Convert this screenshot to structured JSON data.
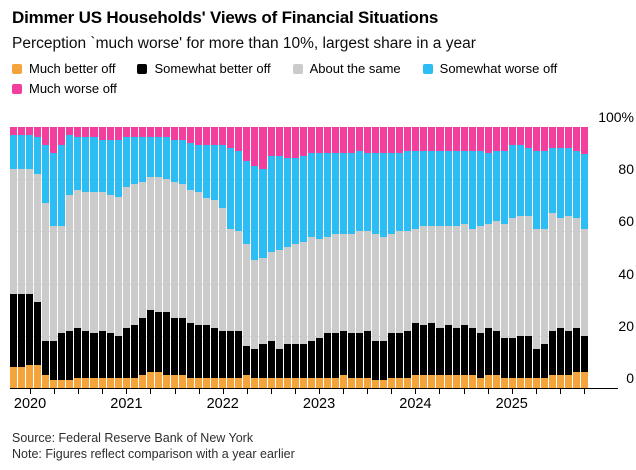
{
  "header": {
    "title": "Dimmer US Households' Views of Financial Situations",
    "subtitle": "Perception `much worse' for more than 10%, largest share in a year"
  },
  "legend": [
    {
      "label": "Much better off",
      "color": "#F5A33B"
    },
    {
      "label": "Somewhat better off",
      "color": "#000000"
    },
    {
      "label": "About the same",
      "color": "#CBCBCB"
    },
    {
      "label": "Somewhat worse off",
      "color": "#2DBDF5"
    },
    {
      "label": "Much worse off",
      "color": "#F23E9D"
    }
  ],
  "footer": {
    "source": "Source: Federal Reserve Bank of New York",
    "note": "Note: Figures reflect comparison with a year earlier"
  },
  "chart_data": {
    "type": "bar",
    "stacked": true,
    "unit": "percent",
    "title": "Household perception of financial situation vs a year ago",
    "grid": true,
    "legend_position": "top",
    "y_axis": {
      "side": "right",
      "range": [
        0,
        100
      ],
      "ticks": [
        {
          "label": "100%",
          "value": 100
        },
        {
          "label": "80",
          "value": 80
        },
        {
          "label": "60",
          "value": 60
        },
        {
          "label": "40",
          "value": 40
        },
        {
          "label": "20",
          "value": 20
        },
        {
          "label": "0",
          "value": 0
        }
      ]
    },
    "x_axis": {
      "year_labels": [
        "2020",
        "2021",
        "2022",
        "2023",
        "2024",
        "2025"
      ],
      "minor_tick_months": [
        "Jan",
        "Apr",
        "Jul",
        "Oct"
      ]
    },
    "categories": [
      "Nov 2019",
      "Dec 2019",
      "Jan 2020",
      "Feb 2020",
      "Mar 2020",
      "Apr 2020",
      "May 2020",
      "Jun 2020",
      "Jul 2020",
      "Aug 2020",
      "Sep 2020",
      "Oct 2020",
      "Nov 2020",
      "Dec 2020",
      "Jan 2021",
      "Feb 2021",
      "Mar 2021",
      "Apr 2021",
      "May 2021",
      "Jun 2021",
      "Jul 2021",
      "Aug 2021",
      "Sep 2021",
      "Oct 2021",
      "Nov 2021",
      "Dec 2021",
      "Jan 2022",
      "Feb 2022",
      "Mar 2022",
      "Apr 2022",
      "May 2022",
      "Jun 2022",
      "Jul 2022",
      "Aug 2022",
      "Sep 2022",
      "Oct 2022",
      "Nov 2022",
      "Dec 2022",
      "Jan 2023",
      "Feb 2023",
      "Mar 2023",
      "Apr 2023",
      "May 2023",
      "Jun 2023",
      "Jul 2023",
      "Aug 2023",
      "Sep 2023",
      "Oct 2023",
      "Nov 2023",
      "Dec 2023",
      "Jan 2024",
      "Feb 2024",
      "Mar 2024",
      "Apr 2024",
      "May 2024",
      "Jun 2024",
      "Jul 2024",
      "Aug 2024",
      "Sep 2024",
      "Oct 2024",
      "Nov 2024",
      "Dec 2024",
      "Jan 2025",
      "Feb 2025",
      "Mar 2025",
      "Apr 2025",
      "May 2025",
      "Jun 2025",
      "Jul 2025",
      "Aug 2025",
      "Sep 2025",
      "Oct 2025"
    ],
    "series": [
      {
        "name": "Much better off",
        "color": "#F5A33B",
        "values": [
          8,
          8,
          9,
          9,
          5,
          3,
          3,
          3,
          4,
          4,
          4,
          4,
          4,
          4,
          4,
          4,
          5,
          6,
          6,
          5,
          5,
          5,
          4,
          4,
          4,
          4,
          4,
          4,
          4,
          5,
          4,
          4,
          4,
          4,
          4,
          4,
          4,
          4,
          4,
          4,
          4,
          5,
          4,
          4,
          4,
          3,
          3,
          4,
          4,
          4,
          5,
          5,
          5,
          5,
          5,
          5,
          5,
          5,
          4,
          5,
          5,
          4,
          4,
          4,
          4,
          4,
          4,
          5,
          5,
          5,
          6,
          6
        ]
      },
      {
        "name": "Somewhat better off",
        "color": "#000000",
        "values": [
          28,
          28,
          27,
          24,
          13,
          15,
          18,
          19,
          19,
          18,
          17,
          18,
          17,
          16,
          19,
          20,
          22,
          24,
          23,
          24,
          22,
          22,
          21,
          20,
          20,
          19,
          18,
          18,
          18,
          11,
          11,
          13,
          14,
          11,
          13,
          13,
          13,
          14,
          15,
          17,
          17,
          17,
          17,
          17,
          18,
          15,
          15,
          17,
          17,
          18,
          20,
          19,
          20,
          18,
          19,
          18,
          19,
          18,
          17,
          18,
          17,
          15,
          15,
          16,
          16,
          11,
          13,
          17,
          18,
          17,
          17,
          14
        ]
      },
      {
        "name": "About the same",
        "color": "#CBCBCB",
        "values": [
          48,
          48,
          48,
          49,
          53,
          44,
          41,
          52,
          53,
          53,
          54,
          53,
          53,
          53,
          54,
          54,
          52,
          51,
          52,
          51,
          52,
          51,
          51,
          51,
          49,
          49,
          47,
          39,
          38,
          39,
          34,
          33,
          34,
          38,
          37,
          38,
          39,
          40,
          38,
          37,
          38,
          37,
          38,
          39,
          38,
          41,
          40,
          38,
          39,
          38,
          36,
          38,
          37,
          39,
          38,
          39,
          39,
          38,
          41,
          40,
          42,
          44,
          46,
          46,
          46,
          46,
          44,
          45,
          42,
          44,
          42,
          41
        ]
      },
      {
        "name": "Somewhat worse off",
        "color": "#2DBDF5",
        "values": [
          13,
          13,
          13,
          14,
          22,
          28,
          31,
          23,
          20,
          21,
          21,
          20,
          21,
          22,
          19,
          18,
          17,
          15,
          15,
          16,
          16,
          17,
          18,
          18,
          20,
          21,
          24,
          31,
          31,
          32,
          36,
          34,
          37,
          36,
          34,
          33,
          33,
          32,
          33,
          32,
          31,
          31,
          31,
          31,
          30,
          31,
          32,
          31,
          30,
          31,
          30,
          29,
          29,
          29,
          29,
          29,
          28,
          30,
          29,
          27,
          27,
          28,
          28,
          27,
          26,
          30,
          30,
          25,
          27,
          26,
          26,
          28.6
        ]
      },
      {
        "name": "Much worse off",
        "color": "#F23E9D",
        "values": [
          3,
          3,
          3,
          4,
          7,
          10,
          7,
          3,
          4,
          4,
          4,
          5,
          5,
          5,
          4,
          4,
          4,
          4,
          4,
          4,
          5,
          5,
          6,
          7,
          7,
          7,
          7,
          8,
          9,
          13,
          15,
          16,
          11,
          11,
          12,
          12,
          11,
          10,
          10,
          10,
          10,
          10,
          10,
          9,
          10,
          10,
          10,
          10,
          10,
          9,
          9,
          9,
          9,
          9,
          9,
          9,
          9,
          9,
          9,
          10,
          9,
          9,
          7,
          7,
          8,
          9,
          9,
          8,
          8,
          8,
          9,
          10.4
        ]
      }
    ]
  }
}
